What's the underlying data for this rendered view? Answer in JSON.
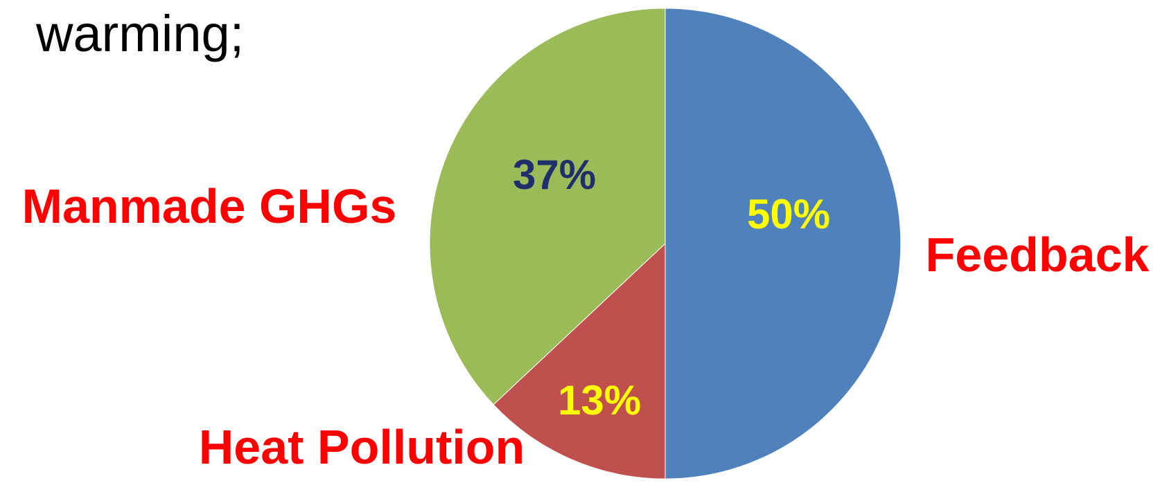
{
  "heading": "warming;",
  "chart_data": {
    "type": "pie",
    "title": "",
    "start_angle_deg": 0,
    "direction": "clockwise",
    "slices": [
      {
        "label": "Feedback",
        "value": 50,
        "value_label": "50%",
        "color": "#4F81BD",
        "value_label_color": "#FFFF00"
      },
      {
        "label": "Heat Pollution",
        "value": 13,
        "value_label": "13%",
        "color": "#C0504D",
        "value_label_color": "#FFFF00"
      },
      {
        "label": "Manmade GHGs",
        "value": 37,
        "value_label": "37%",
        "color": "#9BBB59",
        "value_label_color": "#1F2F6B"
      }
    ],
    "category_label_color": "#FF0000",
    "legend": "none"
  }
}
